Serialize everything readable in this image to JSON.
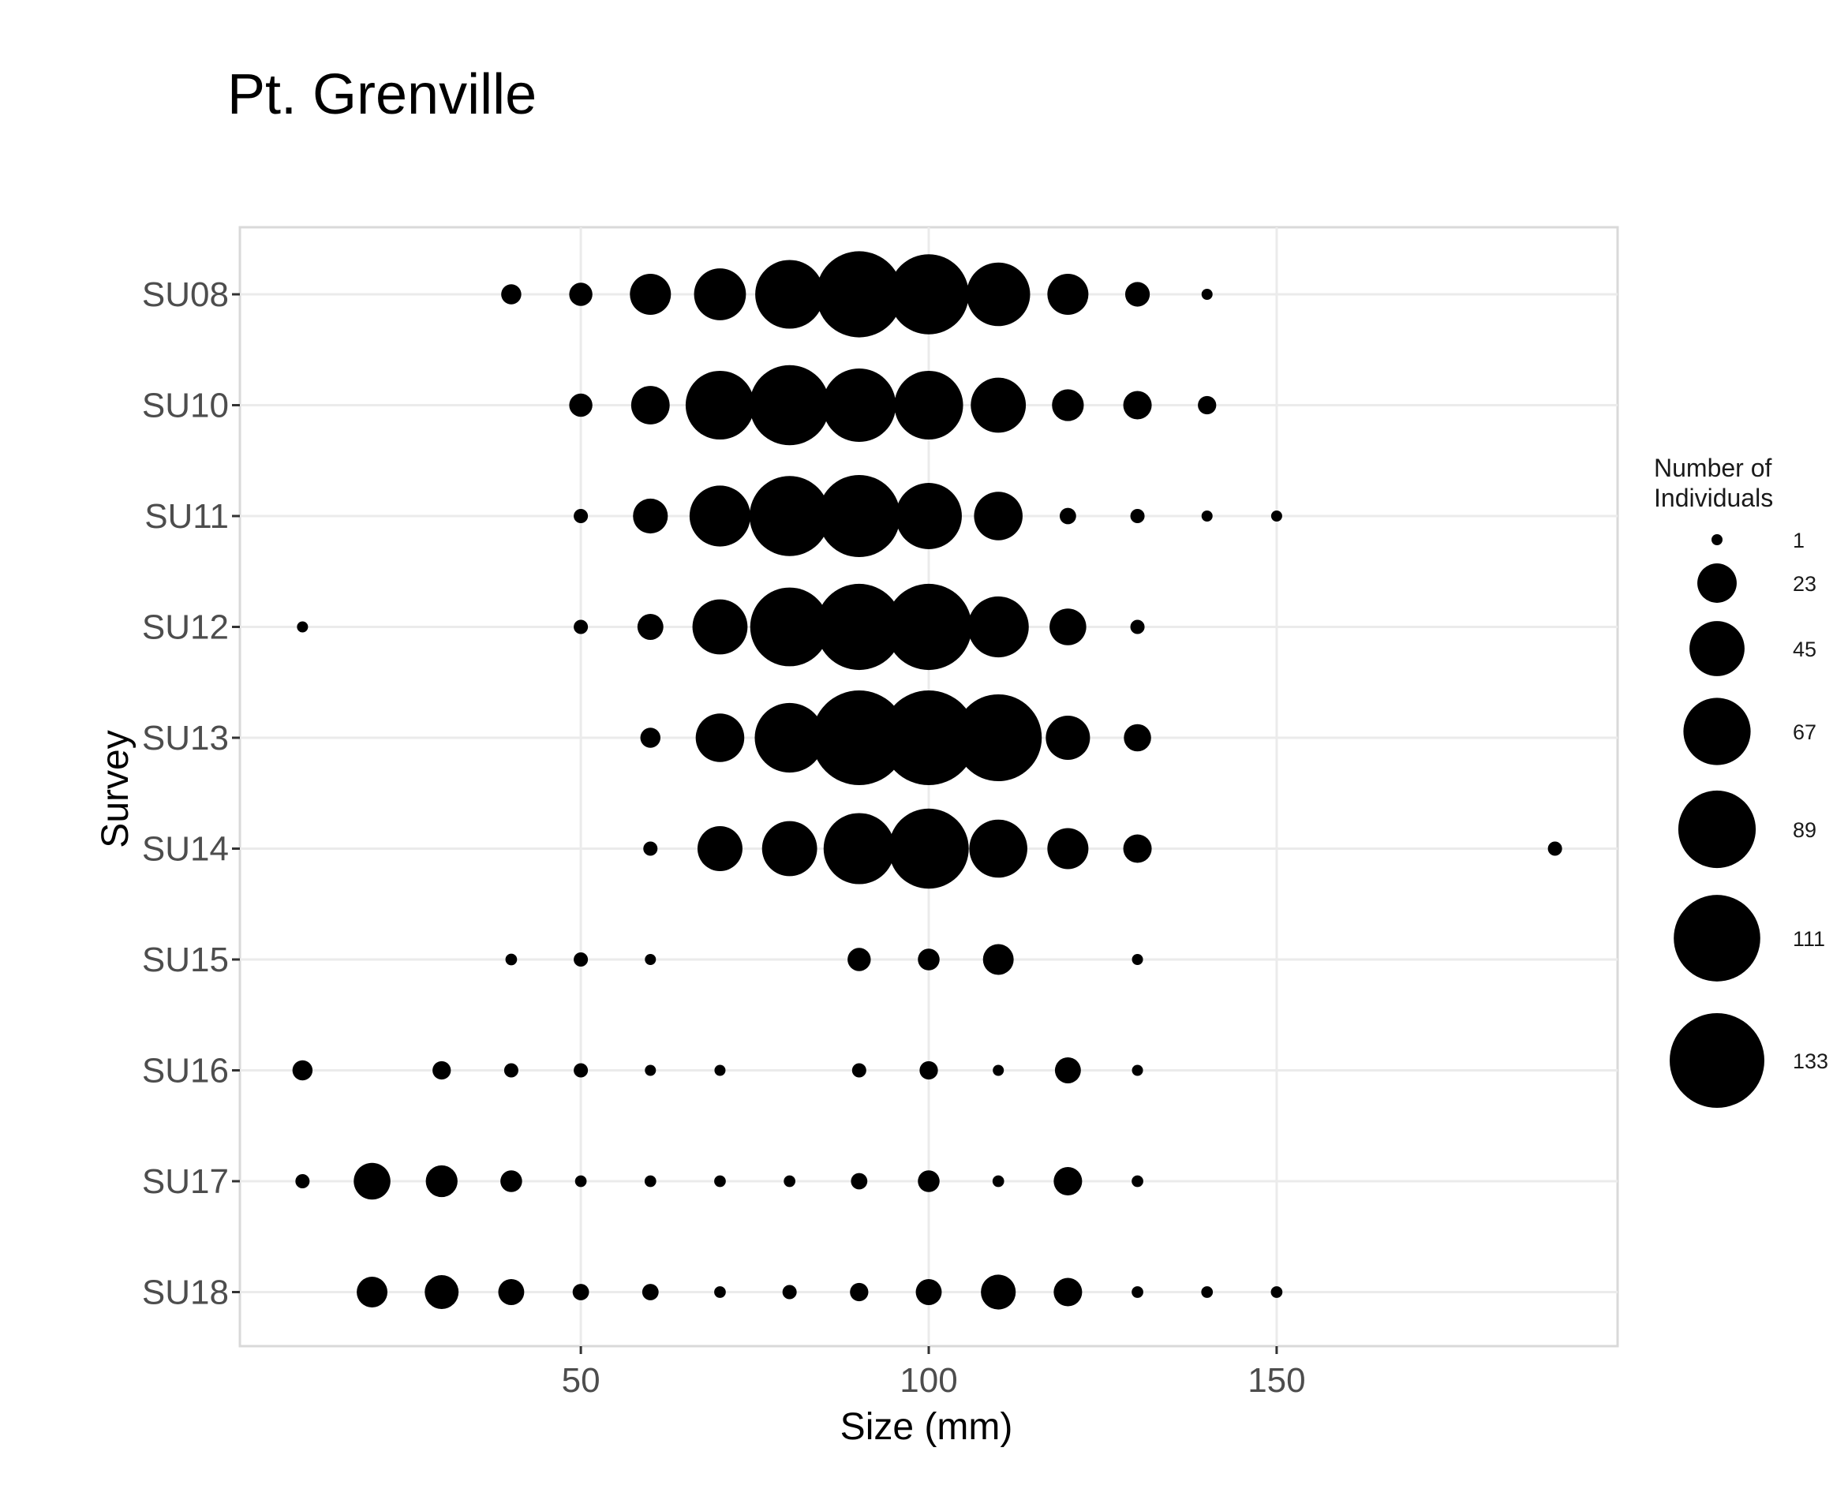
{
  "chart_data": {
    "type": "scatter",
    "title": "Pt. Grenville",
    "xlabel": "Size (mm)",
    "ylabel": "Survey",
    "xlim": [
      1,
      199
    ],
    "x_ticks": [
      50,
      100,
      150
    ],
    "x_tick_labels": [
      "50",
      "100",
      "150"
    ],
    "categories": [
      "SU08",
      "SU10",
      "SU11",
      "SU12",
      "SU13",
      "SU14",
      "SU15",
      "SU16",
      "SU17",
      "SU18"
    ],
    "grid": true,
    "point_color": "#000000",
    "legend": {
      "title_lines": [
        "Number of",
        "Individuals"
      ],
      "position": "right",
      "values": [
        1,
        23,
        45,
        67,
        89,
        111,
        133
      ],
      "labels": [
        "1",
        "23",
        "45",
        "67",
        "89",
        "111",
        "133"
      ]
    },
    "series": [
      {
        "survey": "SU08",
        "points": [
          [
            40,
            6
          ],
          [
            50,
            8
          ],
          [
            60,
            25
          ],
          [
            70,
            40
          ],
          [
            80,
            70
          ],
          [
            90,
            110
          ],
          [
            100,
            95
          ],
          [
            110,
            60
          ],
          [
            120,
            25
          ],
          [
            130,
            9
          ],
          [
            140,
            1
          ]
        ]
      },
      {
        "survey": "SU10",
        "points": [
          [
            50,
            8
          ],
          [
            60,
            22
          ],
          [
            70,
            70
          ],
          [
            80,
            95
          ],
          [
            90,
            80
          ],
          [
            100,
            70
          ],
          [
            110,
            45
          ],
          [
            120,
            15
          ],
          [
            130,
            12
          ],
          [
            140,
            5
          ]
        ]
      },
      {
        "survey": "SU11",
        "points": [
          [
            50,
            3
          ],
          [
            60,
            18
          ],
          [
            70,
            55
          ],
          [
            80,
            95
          ],
          [
            90,
            100
          ],
          [
            100,
            65
          ],
          [
            110,
            35
          ],
          [
            120,
            4
          ],
          [
            130,
            3
          ],
          [
            140,
            1
          ],
          [
            150,
            1
          ]
        ]
      },
      {
        "survey": "SU12",
        "points": [
          [
            10,
            1
          ],
          [
            50,
            3
          ],
          [
            60,
            10
          ],
          [
            70,
            45
          ],
          [
            80,
            92
          ],
          [
            90,
            110
          ],
          [
            100,
            110
          ],
          [
            110,
            55
          ],
          [
            120,
            20
          ],
          [
            130,
            3
          ]
        ]
      },
      {
        "survey": "SU13",
        "points": [
          [
            60,
            6
          ],
          [
            70,
            35
          ],
          [
            80,
            72
          ],
          [
            90,
            133
          ],
          [
            100,
            133
          ],
          [
            110,
            112
          ],
          [
            120,
            29
          ],
          [
            130,
            11
          ]
        ]
      },
      {
        "survey": "SU14",
        "points": [
          [
            60,
            3
          ],
          [
            70,
            30
          ],
          [
            80,
            45
          ],
          [
            90,
            75
          ],
          [
            100,
            95
          ],
          [
            110,
            50
          ],
          [
            120,
            25
          ],
          [
            130,
            12
          ],
          [
            190,
            3
          ]
        ]
      },
      {
        "survey": "SU15",
        "points": [
          [
            40,
            2
          ],
          [
            50,
            3
          ],
          [
            60,
            1
          ],
          [
            90,
            8
          ],
          [
            100,
            7
          ],
          [
            110,
            14
          ],
          [
            130,
            1
          ]
        ]
      },
      {
        "survey": "SU16",
        "points": [
          [
            10,
            6
          ],
          [
            30,
            5
          ],
          [
            40,
            3
          ],
          [
            50,
            3
          ],
          [
            60,
            1
          ],
          [
            70,
            1
          ],
          [
            90,
            3
          ],
          [
            100,
            5
          ],
          [
            110,
            1
          ],
          [
            120,
            10
          ],
          [
            130,
            1
          ]
        ]
      },
      {
        "survey": "SU17",
        "points": [
          [
            10,
            3
          ],
          [
            20,
            20
          ],
          [
            30,
            15
          ],
          [
            40,
            7
          ],
          [
            50,
            2
          ],
          [
            60,
            2
          ],
          [
            70,
            2
          ],
          [
            80,
            2
          ],
          [
            90,
            4
          ],
          [
            100,
            7
          ],
          [
            110,
            2
          ],
          [
            120,
            12
          ],
          [
            130,
            2
          ]
        ]
      },
      {
        "survey": "SU18",
        "points": [
          [
            20,
            14
          ],
          [
            30,
            17
          ],
          [
            40,
            10
          ],
          [
            50,
            4
          ],
          [
            60,
            4
          ],
          [
            70,
            2
          ],
          [
            80,
            3
          ],
          [
            90,
            5
          ],
          [
            100,
            10
          ],
          [
            110,
            18
          ],
          [
            120,
            12
          ],
          [
            130,
            2
          ],
          [
            140,
            2
          ],
          [
            150,
            2
          ]
        ]
      }
    ]
  }
}
